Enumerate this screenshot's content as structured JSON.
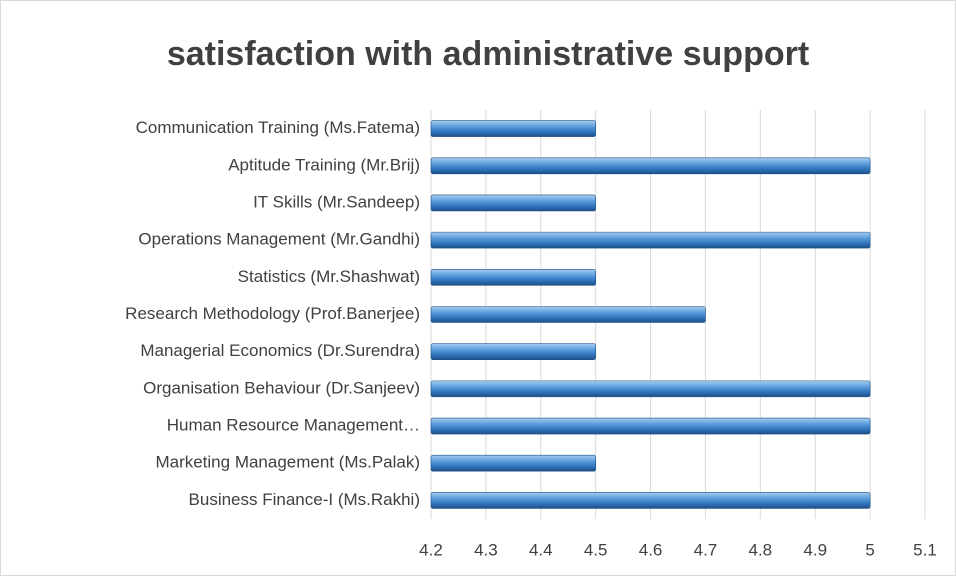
{
  "chart_data": {
    "type": "bar",
    "orientation": "horizontal",
    "title": "satisfaction with administrative support",
    "categories": [
      "Communication Training (Ms.Fatema)",
      "Aptitude Training (Mr.Brij)",
      "IT Skills (Mr.Sandeep)",
      "Operations Management (Mr.Gandhi)",
      "Statistics (Mr.Shashwat)",
      "Research Methodology (Prof.Banerjee)",
      "Managerial Economics (Dr.Surendra)",
      "Organisation Behaviour (Dr.Sanjeev)",
      "Human Resource Management…",
      "Marketing Management (Ms.Palak)",
      "Business Finance-I (Ms.Rakhi)"
    ],
    "values": [
      4.5,
      5,
      4.5,
      5,
      4.5,
      4.7,
      4.5,
      5,
      5,
      4.5,
      5
    ],
    "color": "#4a8fd1",
    "xlim": [
      4.2,
      5.1
    ],
    "xticks": [
      4.2,
      4.3,
      4.4,
      4.5,
      4.6,
      4.7,
      4.8,
      4.9,
      5,
      5.1
    ],
    "grid": true
  }
}
